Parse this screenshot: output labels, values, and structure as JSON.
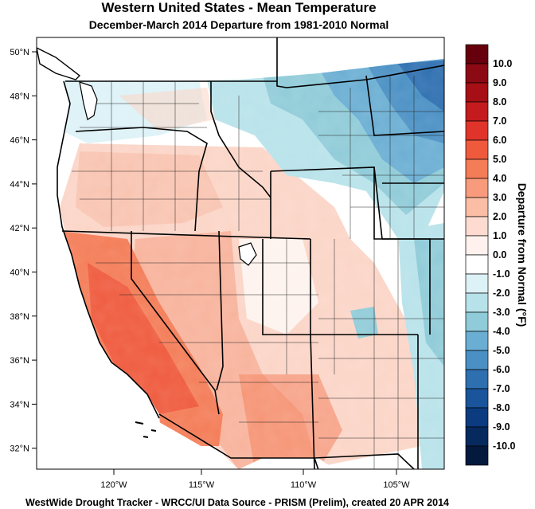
{
  "title": "Western United States - Mean Temperature",
  "subtitle": "December-March 2014  Departure from 1981-2010 Normal",
  "footer": "WestWide Drought Tracker - WRCC/UI  Data Source - PRISM (Prelim), created 20 APR 2014",
  "latitude_labels": [
    "50°N",
    "48°N",
    "46°N",
    "44°N",
    "42°N",
    "40°N",
    "38°N",
    "36°N",
    "34°N",
    "32°N"
  ],
  "longitude_labels": [
    "120°W",
    "115°W",
    "110°W",
    "105°W"
  ],
  "colorbar": {
    "title": "Departure from Normal (°F)",
    "labels": [
      "10.0",
      "9.0",
      "8.0",
      "7.0",
      "6.0",
      "5.0",
      "4.0",
      "3.0",
      "2.0",
      "1.0",
      "0.0",
      "-1.0",
      "-2.0",
      "-3.0",
      "-4.0",
      "-5.0",
      "-6.0",
      "-7.0",
      "-8.0",
      "-9.0",
      "-10.0"
    ],
    "colors": [
      "#67000d",
      "#8b0a14",
      "#a50f15",
      "#c41b1e",
      "#e0342b",
      "#ef5a3d",
      "#f47c57",
      "#f89b7c",
      "#fbbda4",
      "#fddbd0",
      "#fff2ee",
      "#ffffff",
      "#ddf2f7",
      "#b8e2ea",
      "#8fcbd8",
      "#6aaed3",
      "#4a90c4",
      "#2e6fb0",
      "#1a559c",
      "#0c3b80",
      "#072a5e",
      "#041a3d"
    ]
  }
}
